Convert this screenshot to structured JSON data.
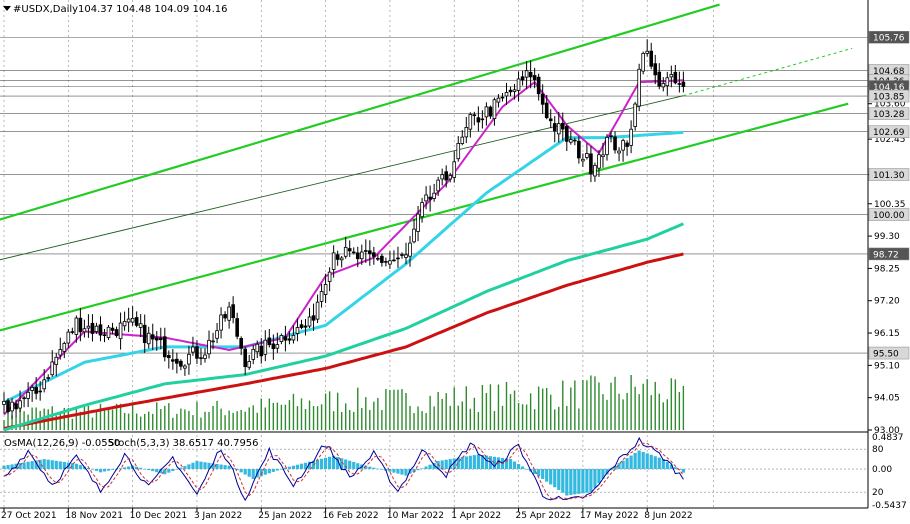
{
  "header": {
    "symbol_text": "#USDX,Daily",
    "ohlc_text": "104.37 104.48 104.09 104.16"
  },
  "osc_header": {
    "osma_text": "OsMA(12,26,9) -0.0550",
    "stoch_text": "Stoch(5,3,3) 38.6517 40.7956"
  },
  "colors": {
    "candles": "#000000",
    "volume": "#2e8b2e",
    "ema_fast": "#cc22cc",
    "ema_mid": "#33d4e8",
    "ema_slow": "#20d0a0",
    "ema_long": "#cc1111",
    "channel": "#22cc22",
    "osma": "#33b8e0",
    "stoch_main": "#000099",
    "stoch_signal": "#cc3333"
  },
  "chart_data": {
    "type": "candlestick",
    "ylim": [
      93.0,
      106.45
    ],
    "y_ticks": [
      "103.60",
      "102.45",
      "101.30",
      "100.35",
      "99.30",
      "98.25",
      "97.20",
      "96.15",
      "95.10",
      "94.05",
      "93.00"
    ],
    "level_labels": [
      {
        "label": "105.76",
        "value": 105.76,
        "style": "dark"
      },
      {
        "label": "104.68",
        "value": 104.68,
        "style": "light"
      },
      {
        "label": "104.36",
        "value": 104.36,
        "style": "light"
      },
      {
        "label": "104.16",
        "value": 104.16,
        "style": "dark"
      },
      {
        "label": "103.85",
        "value": 103.85,
        "style": "light"
      },
      {
        "label": "103.28",
        "value": 103.28,
        "style": "light"
      },
      {
        "label": "102.69",
        "value": 102.69,
        "style": "light"
      },
      {
        "label": "101.30",
        "value": 101.3,
        "style": "light"
      },
      {
        "label": "100.00",
        "value": 100.0,
        "style": "light"
      },
      {
        "label": "98.72",
        "value": 98.72,
        "style": "dark"
      },
      {
        "label": "95.50",
        "value": 95.5,
        "style": "light"
      }
    ],
    "x_ticks": [
      "27 Oct 2021",
      "18 Nov 2021",
      "10 Dec 2021",
      "3 Jan 2022",
      "25 Jan 2022",
      "16 Feb 2022",
      "10 Mar 2022",
      "1 Apr 2022",
      "25 Apr 2022",
      "17 May 2022",
      "8 Jun 2022"
    ],
    "close_waypoints": [
      [
        0,
        93.7
      ],
      [
        8,
        94.2
      ],
      [
        18,
        96.5
      ],
      [
        24,
        96.2
      ],
      [
        32,
        96.4
      ],
      [
        38,
        95.8
      ],
      [
        44,
        95.3
      ],
      [
        50,
        95.6
      ],
      [
        56,
        96.9
      ],
      [
        60,
        95.3
      ],
      [
        64,
        95.6
      ],
      [
        70,
        96.1
      ],
      [
        76,
        96.4
      ],
      [
        82,
        98.8
      ],
      [
        88,
        98.6
      ],
      [
        96,
        98.5
      ],
      [
        100,
        98.6
      ],
      [
        104,
        100.2
      ],
      [
        110,
        101.2
      ],
      [
        116,
        103.0
      ],
      [
        122,
        103.5
      ],
      [
        128,
        104.2
      ],
      [
        131,
        104.6
      ],
      [
        136,
        103.0
      ],
      [
        142,
        102.2
      ],
      [
        146,
        101.6
      ],
      [
        150,
        102.4
      ],
      [
        155,
        102.1
      ],
      [
        159,
        105.5
      ],
      [
        162,
        104.4
      ],
      [
        166,
        104.3
      ],
      [
        169,
        104.16
      ]
    ],
    "ema_fast_waypoints": [
      [
        0,
        93.5
      ],
      [
        20,
        96.2
      ],
      [
        40,
        96.0
      ],
      [
        56,
        95.6
      ],
      [
        70,
        96.0
      ],
      [
        80,
        98.0
      ],
      [
        92,
        98.6
      ],
      [
        110,
        101.0
      ],
      [
        124,
        103.5
      ],
      [
        132,
        104.3
      ],
      [
        140,
        102.9
      ],
      [
        148,
        102.0
      ],
      [
        158,
        104.3
      ],
      [
        169,
        104.36
      ]
    ],
    "ema_mid_waypoints": [
      [
        0,
        93.9
      ],
      [
        20,
        95.2
      ],
      [
        40,
        95.7
      ],
      [
        60,
        95.7
      ],
      [
        80,
        96.4
      ],
      [
        100,
        98.4
      ],
      [
        120,
        100.7
      ],
      [
        140,
        102.5
      ],
      [
        150,
        102.5
      ],
      [
        169,
        102.67
      ]
    ],
    "ema_slow_waypoints": [
      [
        0,
        93.0
      ],
      [
        20,
        93.8
      ],
      [
        40,
        94.5
      ],
      [
        60,
        94.8
      ],
      [
        80,
        95.4
      ],
      [
        100,
        96.3
      ],
      [
        120,
        97.5
      ],
      [
        140,
        98.5
      ],
      [
        160,
        99.2
      ],
      [
        169,
        99.7
      ]
    ],
    "ema_long_waypoints": [
      [
        0,
        93.05
      ],
      [
        30,
        93.8
      ],
      [
        60,
        94.5
      ],
      [
        80,
        95.0
      ],
      [
        100,
        95.7
      ],
      [
        120,
        96.8
      ],
      [
        140,
        97.7
      ],
      [
        160,
        98.45
      ],
      [
        169,
        98.72
      ]
    ],
    "volume_waypoints": [
      [
        0,
        0.3
      ],
      [
        30,
        0.32
      ],
      [
        60,
        0.36
      ],
      [
        80,
        0.48
      ],
      [
        100,
        0.5
      ],
      [
        120,
        0.55
      ],
      [
        140,
        0.6
      ],
      [
        160,
        0.7
      ],
      [
        169,
        0.55
      ]
    ],
    "channel_lines": [
      {
        "name": "upper",
        "p0": [
          -2,
          99.8
        ],
        "p1": [
          178,
          106.82
        ]
      },
      {
        "name": "lower",
        "p0": [
          -2,
          96.2
        ],
        "p1": [
          210,
          103.6
        ]
      },
      {
        "name": "mid-dark",
        "p0": [
          -2,
          98.5
        ],
        "p1": [
          169,
          103.86
        ]
      },
      {
        "name": "mid-dotted",
        "p0": [
          169,
          103.86
        ],
        "p1": [
          211,
          105.4
        ]
      }
    ],
    "osc": {
      "ylim": [
        -0.5437,
        0.4837
      ],
      "labels": [
        {
          "label": "0.4837",
          "value": 0.4837
        },
        {
          "label": "80",
          "value": 0.3
        },
        {
          "label": "0.00",
          "value": 0.0
        },
        {
          "label": "20",
          "value": -0.35
        },
        {
          "label": "-0.5437",
          "value": -0.5437
        }
      ],
      "hist_waypoints": [
        [
          0,
          0.05
        ],
        [
          10,
          0.15
        ],
        [
          18,
          0.08
        ],
        [
          24,
          -0.05
        ],
        [
          32,
          0.05
        ],
        [
          40,
          -0.08
        ],
        [
          48,
          0.12
        ],
        [
          56,
          0.05
        ],
        [
          62,
          -0.15
        ],
        [
          70,
          0.02
        ],
        [
          82,
          0.2
        ],
        [
          90,
          0.05
        ],
        [
          100,
          -0.1
        ],
        [
          108,
          0.12
        ],
        [
          118,
          0.22
        ],
        [
          126,
          0.15
        ],
        [
          134,
          -0.15
        ],
        [
          140,
          -0.4
        ],
        [
          146,
          -0.35
        ],
        [
          152,
          0.05
        ],
        [
          158,
          0.28
        ],
        [
          164,
          0.15
        ],
        [
          169,
          -0.055
        ]
      ],
      "stoch_waypoints": [
        [
          0,
          40
        ],
        [
          6,
          80
        ],
        [
          12,
          30
        ],
        [
          18,
          70
        ],
        [
          24,
          20
        ],
        [
          30,
          75
        ],
        [
          36,
          25
        ],
        [
          42,
          70
        ],
        [
          48,
          15
        ],
        [
          54,
          85
        ],
        [
          60,
          10
        ],
        [
          66,
          80
        ],
        [
          72,
          30
        ],
        [
          80,
          90
        ],
        [
          86,
          40
        ],
        [
          92,
          75
        ],
        [
          98,
          20
        ],
        [
          104,
          80
        ],
        [
          110,
          45
        ],
        [
          116,
          90
        ],
        [
          122,
          55
        ],
        [
          128,
          88
        ],
        [
          134,
          15
        ],
        [
          140,
          5
        ],
        [
          146,
          15
        ],
        [
          152,
          60
        ],
        [
          158,
          95
        ],
        [
          164,
          70
        ],
        [
          169,
          38.65
        ]
      ]
    }
  }
}
